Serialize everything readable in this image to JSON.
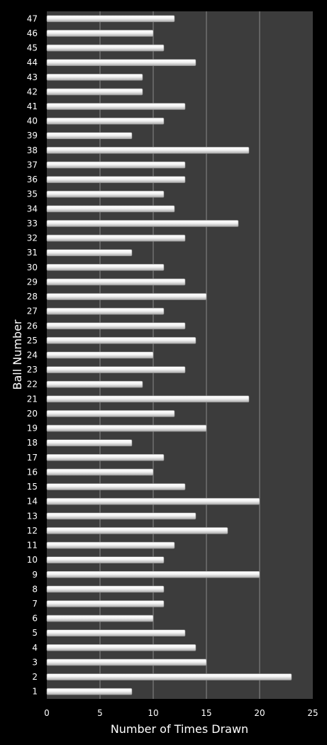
{
  "chart_data": {
    "type": "bar",
    "orientation": "horizontal",
    "title": "",
    "xlabel": "Number of Times Drawn",
    "ylabel": "Ball Number",
    "xlim": [
      0,
      25
    ],
    "x_ticks": [
      0,
      5,
      10,
      15,
      20,
      25
    ],
    "grid": "vertical",
    "legend": "none",
    "categories": [
      "1",
      "2",
      "3",
      "4",
      "5",
      "6",
      "7",
      "8",
      "9",
      "10",
      "11",
      "12",
      "13",
      "14",
      "15",
      "16",
      "17",
      "18",
      "19",
      "20",
      "21",
      "22",
      "23",
      "24",
      "25",
      "26",
      "27",
      "28",
      "29",
      "30",
      "31",
      "32",
      "33",
      "34",
      "35",
      "36",
      "37",
      "38",
      "39",
      "40",
      "41",
      "42",
      "43",
      "44",
      "45",
      "46",
      "47"
    ],
    "values": [
      8,
      23,
      15,
      14,
      13,
      10,
      11,
      11,
      20,
      11,
      12,
      17,
      14,
      20,
      13,
      10,
      11,
      8,
      15,
      12,
      19,
      9,
      13,
      10,
      14,
      13,
      11,
      15,
      13,
      11,
      8,
      13,
      18,
      12,
      11,
      13,
      13,
      19,
      8,
      11,
      13,
      9,
      9,
      14,
      11,
      10,
      12
    ],
    "colors": {
      "background": "#000000",
      "plot_area": "#3c3c3c",
      "bar": "#f2f2f2",
      "gridline": "#8a8a8a",
      "text": "#ffffff"
    }
  }
}
